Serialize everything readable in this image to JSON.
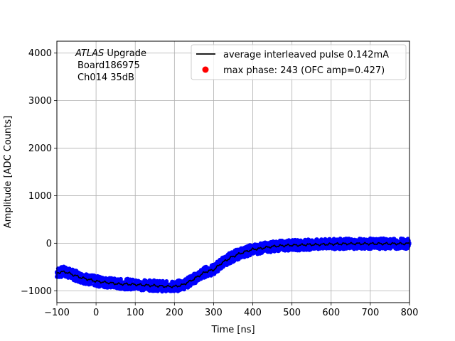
{
  "chart_data": {
    "type": "scatter",
    "title": "",
    "xlabel": "Time [ns]",
    "ylabel": "Amplitude [ADC Counts]",
    "xlim": [
      -100,
      800
    ],
    "ylim": [
      -1250,
      4250
    ],
    "xticks": [
      -100,
      0,
      100,
      200,
      300,
      400,
      500,
      600,
      700,
      800
    ],
    "yticks": [
      -1000,
      0,
      1000,
      2000,
      3000,
      4000
    ],
    "grid": true,
    "legend_position": "top-right",
    "annotation": {
      "italic_part": "ATLAS",
      "line1_rest": " Upgrade",
      "line2": "Board186975",
      "line3": "Ch014 35dB"
    },
    "series": [
      {
        "name": "average interleaved pulse 0.142mA",
        "kind": "line",
        "color": "#000000",
        "x": [
          -100,
          -80,
          -60,
          -40,
          -20,
          0,
          20,
          40,
          60,
          80,
          100,
          120,
          140,
          160,
          180,
          200,
          220,
          240,
          260,
          280,
          300,
          320,
          340,
          360,
          380,
          400,
          420,
          440,
          460,
          480,
          500,
          520,
          540,
          560,
          580,
          600,
          620,
          640,
          660,
          680,
          700,
          720,
          740,
          760,
          780,
          800
        ],
        "y": [
          -620,
          -600,
          -660,
          -720,
          -760,
          -800,
          -820,
          -840,
          -860,
          -860,
          -870,
          -880,
          -890,
          -900,
          -910,
          -910,
          -880,
          -800,
          -700,
          -600,
          -560,
          -420,
          -320,
          -240,
          -180,
          -130,
          -110,
          -80,
          -60,
          -50,
          -40,
          -40,
          -30,
          -30,
          -25,
          -20,
          -15,
          -10,
          -10,
          -10,
          -10,
          -10,
          -10,
          -10,
          -10,
          -10
        ]
      },
      {
        "name": "max phase: 243 (OFC amp=0.427)",
        "kind": "scatter",
        "color": "#ff0000",
        "x": [],
        "y": []
      }
    ],
    "samples": {
      "name": "",
      "color": "#0000ff",
      "spread": 110
    }
  }
}
